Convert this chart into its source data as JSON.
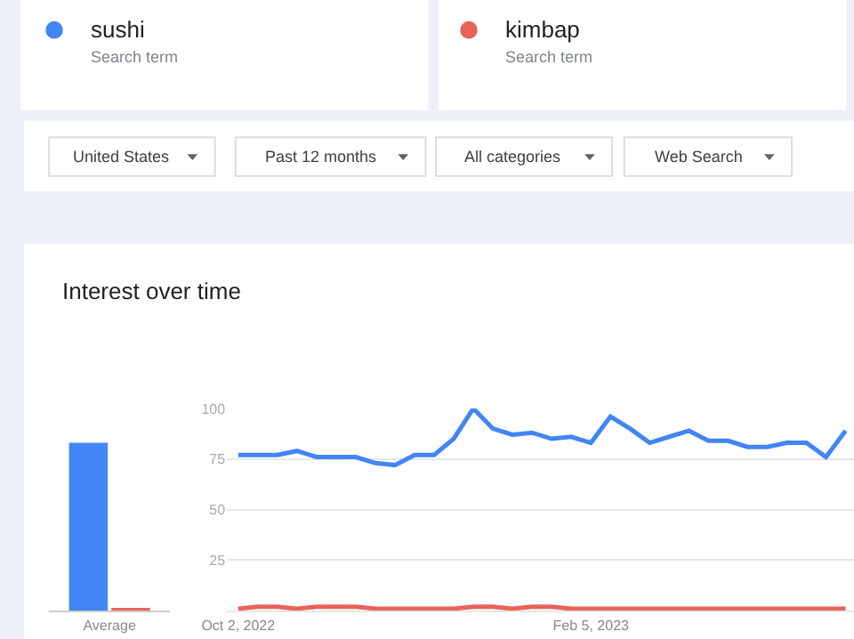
{
  "chart_data": [
    {
      "type": "bar",
      "categories": [
        "Average"
      ],
      "series": [
        {
          "color": "#4285f4",
          "values": [
            83
          ]
        },
        {
          "color": "#e8635a",
          "values": [
            1
          ]
        }
      ],
      "ylim": [
        0,
        100
      ],
      "tick_labels": "x",
      "grid": false,
      "title": "Interest over time"
    },
    {
      "type": "line",
      "x": [
        "2022-10-02",
        "2022-10-09",
        "2022-10-16",
        "2022-10-23",
        "2022-10-30",
        "2022-11-06",
        "2022-11-13",
        "2022-11-20",
        "2022-11-27",
        "2022-12-04",
        "2022-12-11",
        "2022-12-18",
        "2022-12-25",
        "2023-01-01",
        "2023-01-08",
        "2023-01-15",
        "2023-01-22",
        "2023-01-29",
        "2023-02-05",
        "2023-02-12",
        "2023-02-19",
        "2023-02-26",
        "2023-03-05",
        "2023-03-12",
        "2023-03-19",
        "2023-03-26",
        "2023-04-02",
        "2023-04-09",
        "2023-04-16",
        "2023-04-23",
        "2023-04-30",
        "2023-05-07"
      ],
      "series": [
        {
          "name": "sushi",
          "color": "#4285f4",
          "values": [
            77,
            77,
            77,
            79,
            76,
            76,
            76,
            73,
            72,
            77,
            77,
            85,
            100,
            90,
            87,
            88,
            85,
            86,
            83,
            96,
            90,
            83,
            86,
            89,
            84,
            84,
            81,
            81,
            83,
            83,
            76,
            89
          ]
        },
        {
          "name": "kimbap",
          "color": "#e8635a",
          "values": [
            1,
            2,
            2,
            1,
            2,
            2,
            2,
            1,
            1,
            1,
            1,
            1,
            2,
            2,
            1,
            2,
            2,
            1,
            1,
            1,
            1,
            1,
            1,
            1,
            1,
            1,
            1,
            1,
            1,
            1,
            1,
            1
          ]
        }
      ],
      "xlim": [
        "2022-09-28",
        "2023-05-10"
      ],
      "xticks": [
        {
          "value": "2022-10-02",
          "label": "Oct 2, 2022"
        },
        {
          "value": "2023-02-05",
          "label": "Feb 5, 2023"
        }
      ],
      "ylim": [
        0,
        100
      ],
      "yticks": [
        {
          "value": 0,
          "label": null
        },
        25,
        50,
        75,
        100
      ],
      "grid": "y",
      "legend": "top",
      "marker": "none",
      "line_style": "solid",
      "annotations": [
        "Search term",
        "Search term",
        "United States",
        "Past 12 months",
        "All categories",
        "Web Search"
      ]
    }
  ]
}
